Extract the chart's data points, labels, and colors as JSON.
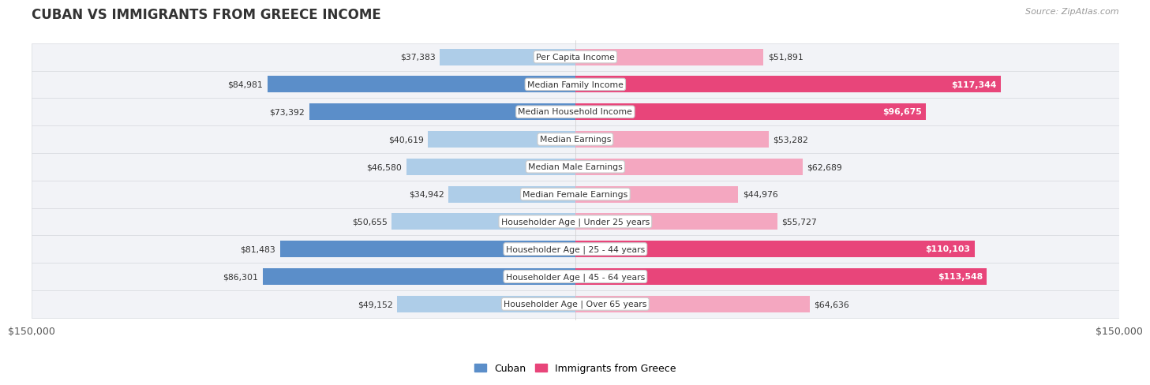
{
  "title": "CUBAN VS IMMIGRANTS FROM GREECE INCOME",
  "source": "Source: ZipAtlas.com",
  "categories": [
    "Per Capita Income",
    "Median Family Income",
    "Median Household Income",
    "Median Earnings",
    "Median Male Earnings",
    "Median Female Earnings",
    "Householder Age | Under 25 years",
    "Householder Age | 25 - 44 years",
    "Householder Age | 45 - 64 years",
    "Householder Age | Over 65 years"
  ],
  "cuban_values": [
    37383,
    84981,
    73392,
    40619,
    46580,
    34942,
    50655,
    81483,
    86301,
    49152
  ],
  "greece_values": [
    51891,
    117344,
    96675,
    53282,
    62689,
    44976,
    55727,
    110103,
    113548,
    64636
  ],
  "cuban_labels": [
    "$37,383",
    "$84,981",
    "$73,392",
    "$40,619",
    "$46,580",
    "$34,942",
    "$50,655",
    "$81,483",
    "$86,301",
    "$49,152"
  ],
  "greece_labels": [
    "$51,891",
    "$117,344",
    "$96,675",
    "$53,282",
    "$62,689",
    "$44,976",
    "$55,727",
    "$110,103",
    "$113,548",
    "$64,636"
  ],
  "cuban_color_light": "#aecde8",
  "cuban_color_dark": "#5b8ec9",
  "greece_color_light": "#f4a7c0",
  "greece_color_dark": "#e8457a",
  "max_value": 150000,
  "legend_cuban": "Cuban",
  "legend_greece": "Immigrants from Greece",
  "bar_height": 0.6,
  "background_color": "#ffffff",
  "axis_label_left": "$150,000",
  "axis_label_right": "$150,000",
  "cuban_threshold": 60000,
  "greece_threshold": 90000
}
